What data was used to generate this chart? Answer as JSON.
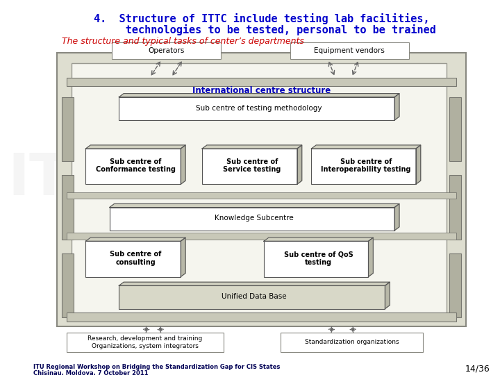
{
  "title_line1": "4.  Structure of ITTC include testing lab facilities,",
  "title_line2": "      technologies to be tested, personal to be trained",
  "subtitle": "The structure and typical tasks of center’s departments",
  "title_color": "#0000CC",
  "subtitle_color": "#CC0000",
  "footer_line1": "ITU Regional Workshop on Bridging the Standardization Gap for CIS States",
  "footer_line2": "Chisinau, Moldova, 7 October 2011",
  "page_num": "14/36",
  "bg_color": "#FFFFFF"
}
